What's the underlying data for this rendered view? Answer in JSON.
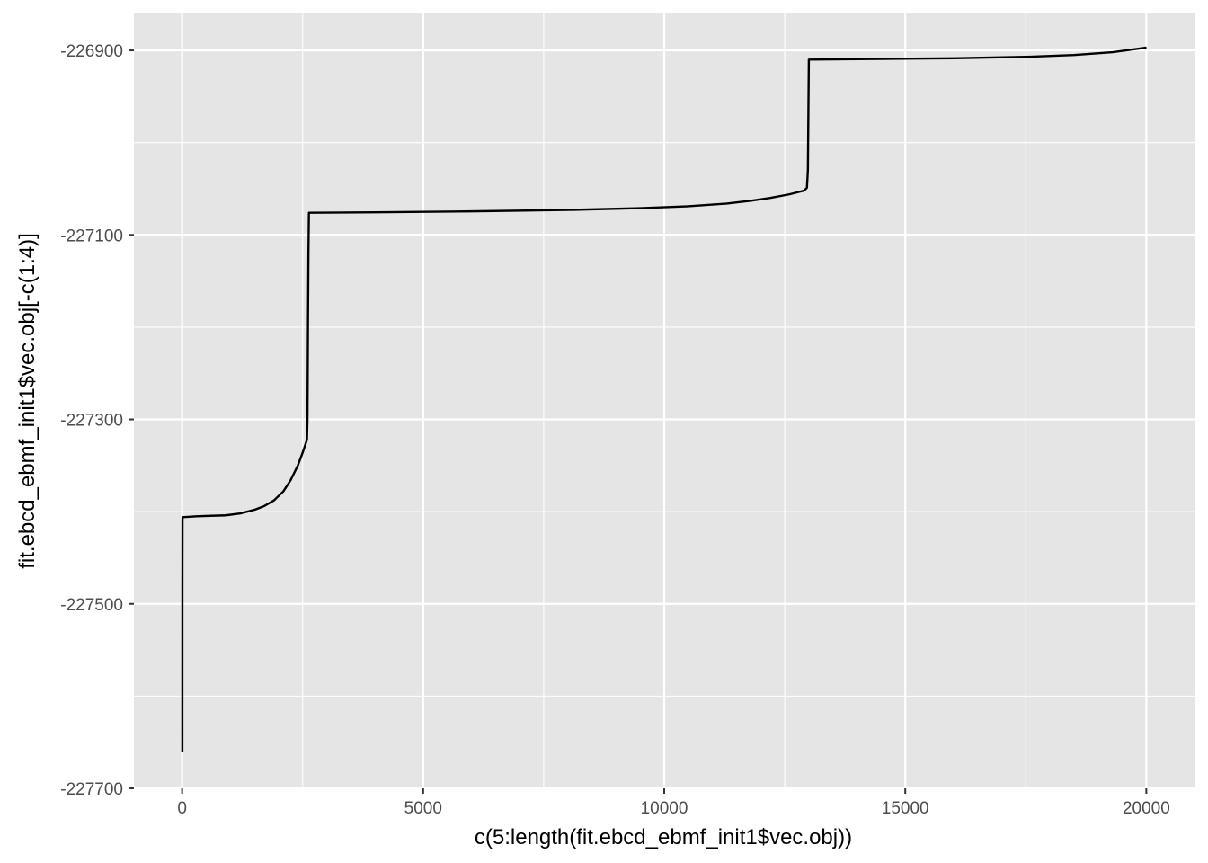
{
  "chart_data": {
    "type": "line",
    "title": "",
    "xlabel": "c(5:length(fit.ebcd_ebmf_init1$vec.obj))",
    "ylabel": "fit.ebcd_ebmf_init1$vec.obj[-c(1:4)]",
    "xlim": [
      -1000,
      21000
    ],
    "ylim": [
      -227700,
      -226860
    ],
    "x_ticks": [
      0,
      5000,
      10000,
      15000,
      20000
    ],
    "x_tick_labels": [
      "0",
      "5000",
      "10000",
      "15000",
      "20000"
    ],
    "y_ticks": [
      -227700,
      -227500,
      -227300,
      -227100,
      -226900
    ],
    "y_tick_labels": [
      "-227700",
      "-227500",
      "-227300",
      "-227100",
      "-226900"
    ],
    "grid": true,
    "legend": "none",
    "colors": {
      "panel": "#e5e5e5",
      "grid": "#ffffff",
      "line": "#000000"
    },
    "series": [
      {
        "values_xy": [
          [
            5,
            -227660
          ],
          [
            6,
            -227480
          ],
          [
            8,
            -227410
          ],
          [
            10,
            -227406
          ],
          [
            300,
            -227405
          ],
          [
            600,
            -227404.5
          ],
          [
            900,
            -227404
          ],
          [
            1200,
            -227402
          ],
          [
            1500,
            -227398
          ],
          [
            1700,
            -227394
          ],
          [
            1900,
            -227388
          ],
          [
            2100,
            -227378
          ],
          [
            2250,
            -227366
          ],
          [
            2400,
            -227350
          ],
          [
            2500,
            -227336
          ],
          [
            2590,
            -227322
          ],
          [
            2600,
            -227300
          ],
          [
            2610,
            -227200
          ],
          [
            2620,
            -227120
          ],
          [
            2630,
            -227076
          ],
          [
            4000,
            -227075.5
          ],
          [
            6000,
            -227074.5
          ],
          [
            8000,
            -227073
          ],
          [
            9500,
            -227071
          ],
          [
            10500,
            -227069
          ],
          [
            11300,
            -227066
          ],
          [
            11800,
            -227063
          ],
          [
            12200,
            -227060
          ],
          [
            12600,
            -227056
          ],
          [
            12900,
            -227052
          ],
          [
            12960,
            -227049
          ],
          [
            12980,
            -227030
          ],
          [
            12990,
            -226970
          ],
          [
            13000,
            -226910
          ],
          [
            14000,
            -226909.5
          ],
          [
            16000,
            -226908.5
          ],
          [
            17500,
            -226907
          ],
          [
            18500,
            -226905
          ],
          [
            19300,
            -226902
          ],
          [
            20003,
            -226897
          ]
        ]
      }
    ]
  }
}
